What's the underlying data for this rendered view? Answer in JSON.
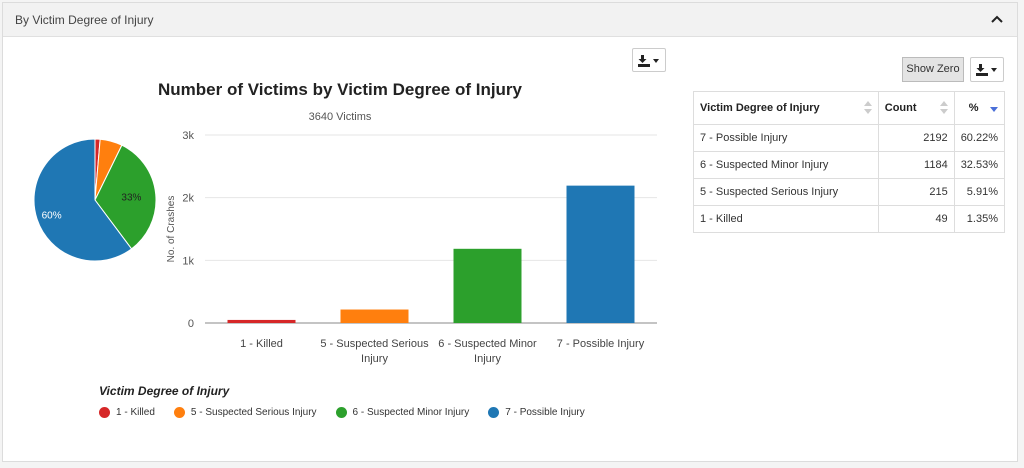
{
  "panel": {
    "title": "By Victim Degree of Injury"
  },
  "controls": {
    "show_zero_label": "Show Zero"
  },
  "colors": {
    "killed": "#d62728",
    "serious": "#ff7f0e",
    "minor": "#2ca02c",
    "possible": "#1f77b4"
  },
  "chart_data": [
    {
      "type": "pie",
      "categories": [
        "1 - Killed",
        "5 - Suspected Serious Injury",
        "6 - Suspected Minor Injury",
        "7 - Possible Injury"
      ],
      "values": [
        49,
        215,
        1184,
        2192
      ],
      "data_labels": [
        "",
        "",
        "33%",
        "60%"
      ]
    },
    {
      "type": "bar",
      "title": "Number of Victims by Victim Degree of Injury",
      "subtitle": "3640 Victims",
      "categories": [
        [
          "1 - Killed"
        ],
        [
          "5 - Suspected Serious",
          "Injury"
        ],
        [
          "6 - Suspected Minor",
          "Injury"
        ],
        [
          "7 - Possible Injury"
        ]
      ],
      "values": [
        49,
        215,
        1184,
        2192
      ],
      "ylabel": "No. of Crashes",
      "xlabel": "",
      "ylim": [
        0,
        3000
      ],
      "yticks": [
        0,
        1000,
        2000,
        3000
      ],
      "ytick_labels": [
        "0",
        "1k",
        "2k",
        "3k"
      ],
      "grid": true
    }
  ],
  "legend": {
    "title": "Victim Degree of Injury",
    "items": [
      "1 - Killed",
      "5 - Suspected Serious Injury",
      "6 - Suspected Minor Injury",
      "7 - Possible Injury"
    ]
  },
  "table": {
    "headers": [
      "Victim Degree of Injury",
      "Count",
      "%"
    ],
    "rows": [
      [
        "7 - Possible Injury",
        "2192",
        "60.22%"
      ],
      [
        "6 - Suspected Minor Injury",
        "1184",
        "32.53%"
      ],
      [
        "5 - Suspected Serious Injury",
        "215",
        "5.91%"
      ],
      [
        "1 - Killed",
        "49",
        "1.35%"
      ]
    ]
  }
}
